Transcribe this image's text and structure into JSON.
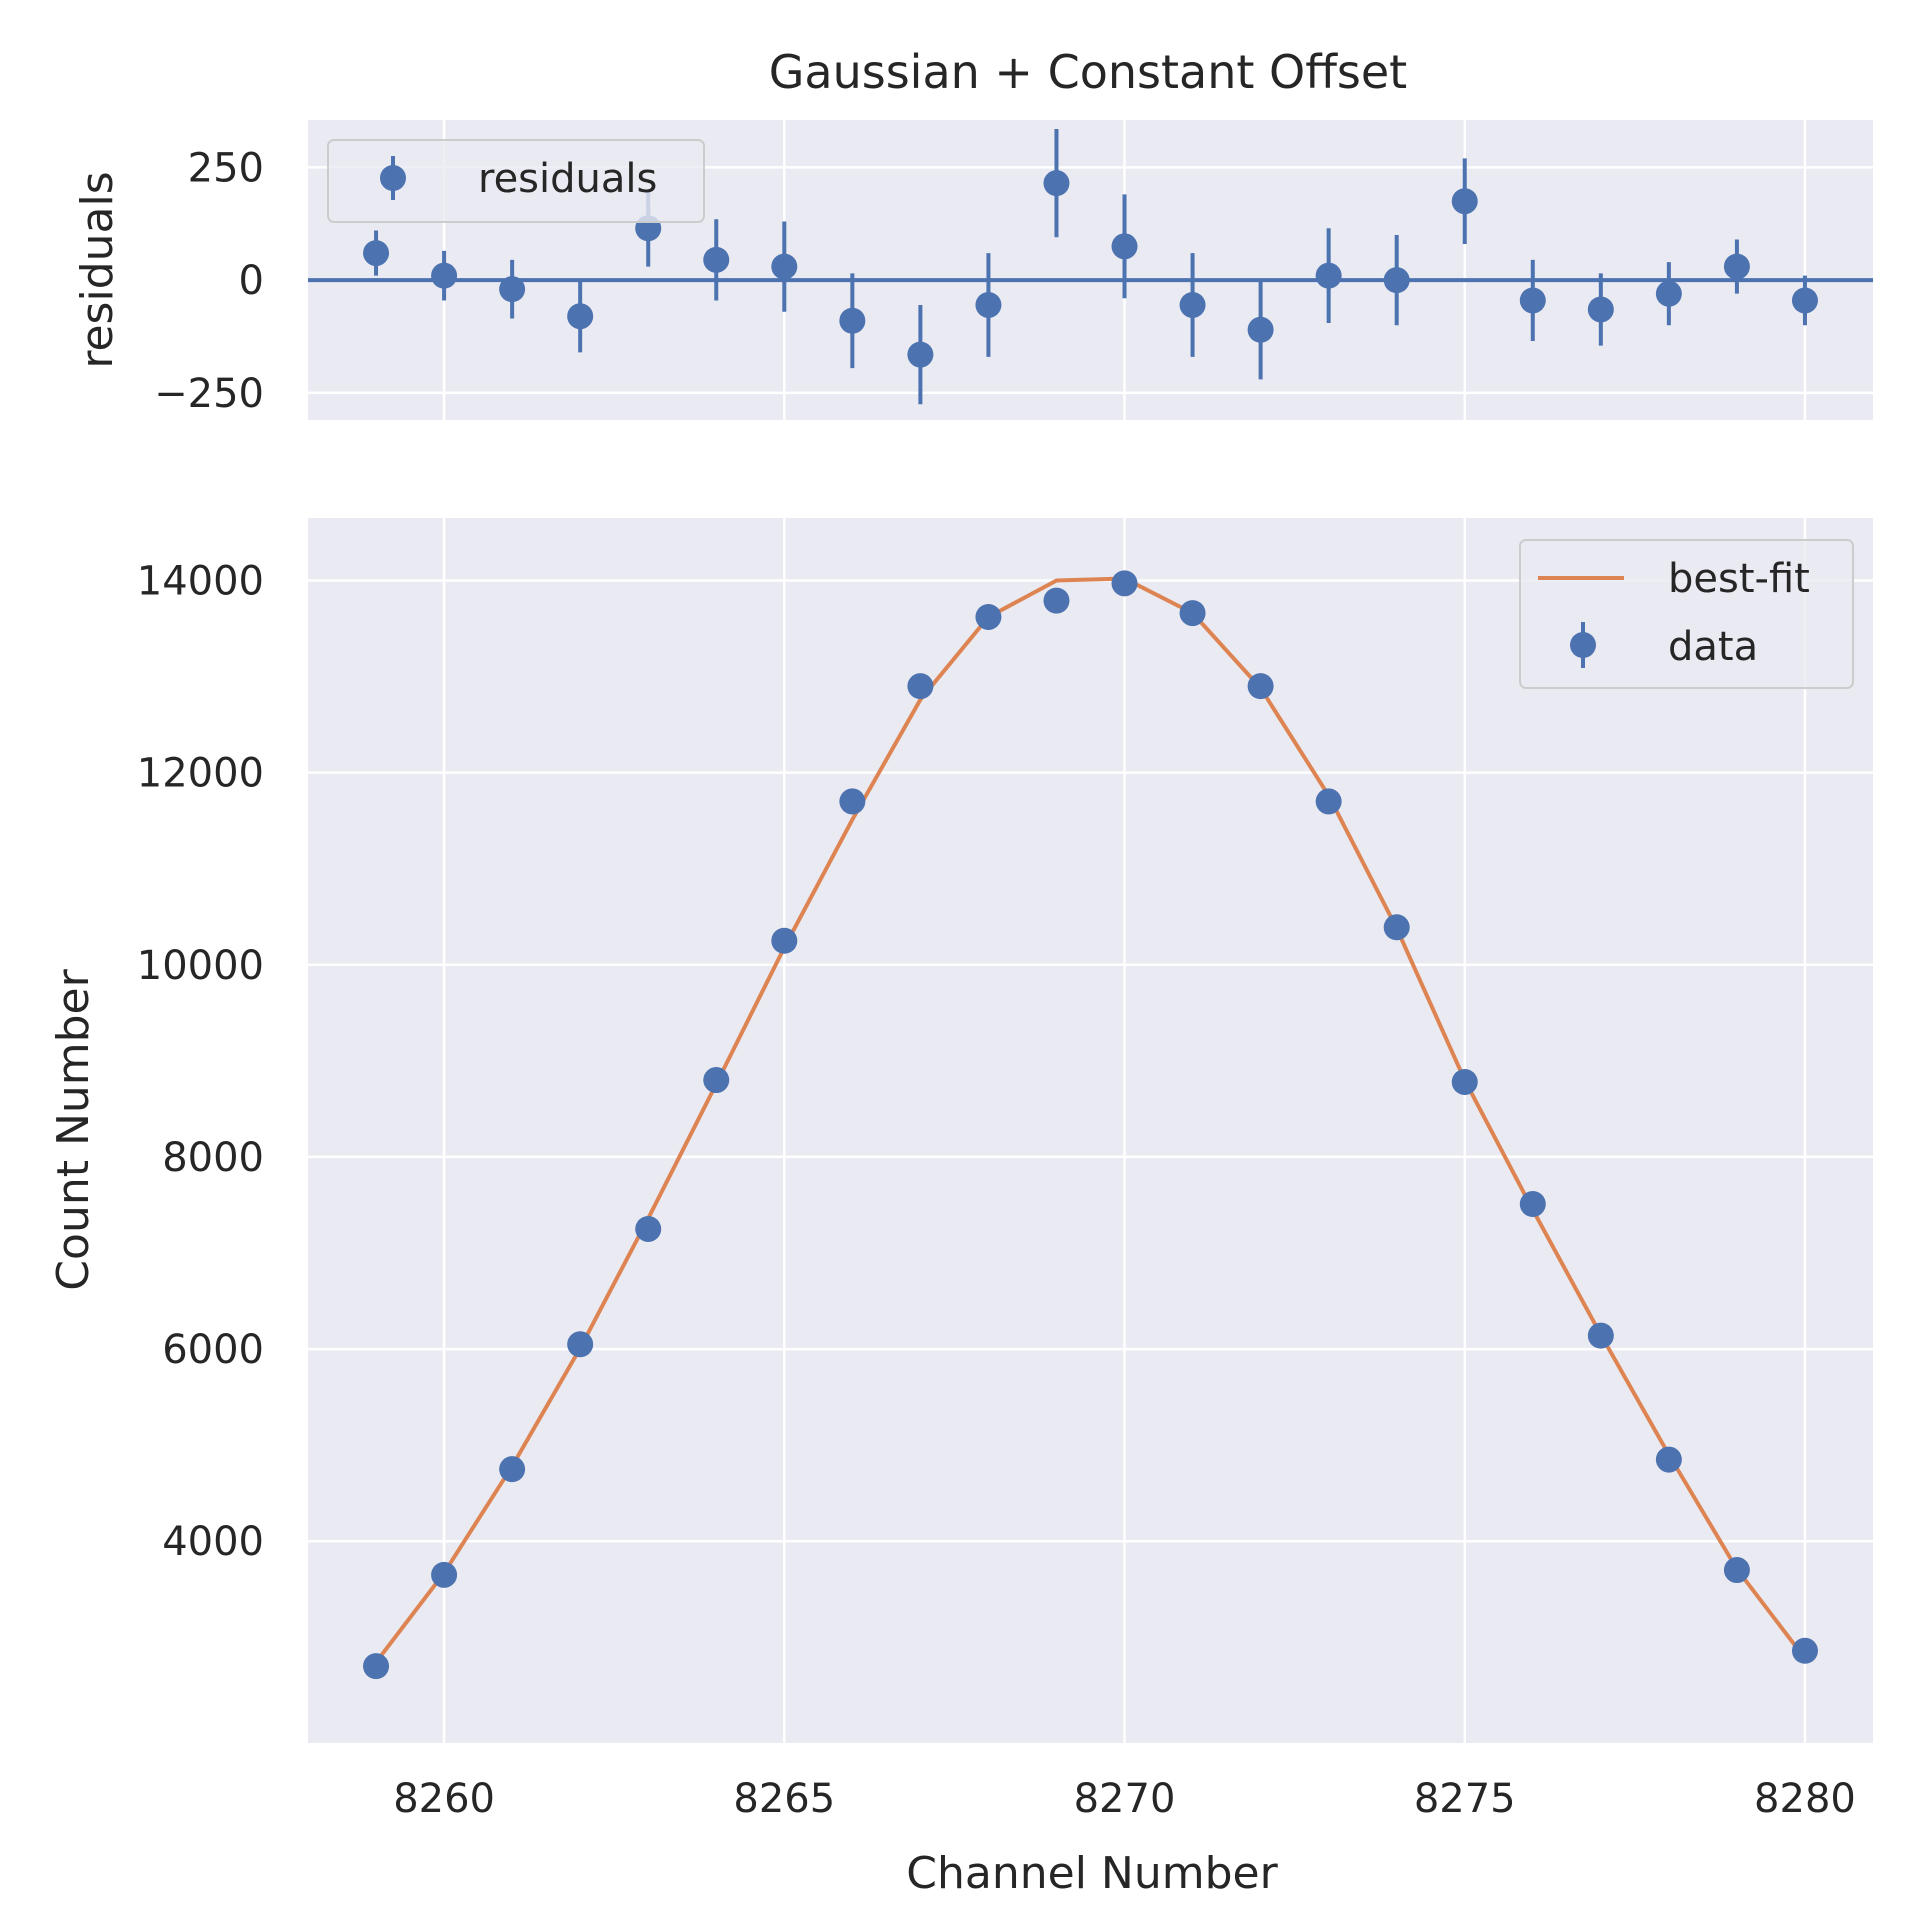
{
  "chart_data": [
    {
      "type": "scatter",
      "title": "Gaussian + Constant Offset",
      "xlabel": "",
      "ylabel": "residuals",
      "xlim": [
        8258,
        8281
      ],
      "ylim": [
        -310,
        355
      ],
      "yticks": [
        -250,
        0,
        250
      ],
      "ytick_labels": [
        "−250",
        "0",
        "250"
      ],
      "grid": true,
      "legend_placement": "upper left",
      "legend": [
        "residuals"
      ],
      "reference_line": 0,
      "series": [
        {
          "name": "residuals",
          "x": [
            8259,
            8260,
            8261,
            8262,
            8263,
            8264,
            8265,
            8266,
            8267,
            8268,
            8269,
            8270,
            8271,
            8272,
            8273,
            8274,
            8275,
            8276,
            8277,
            8278,
            8279,
            8280
          ],
          "y": [
            60,
            10,
            -20,
            -80,
            115,
            45,
            30,
            -90,
            -165,
            -55,
            215,
            75,
            -55,
            -110,
            10,
            0,
            175,
            -45,
            -65,
            -30,
            30,
            -45
          ],
          "yerr": [
            50,
            55,
            65,
            80,
            85,
            90,
            100,
            105,
            110,
            115,
            120,
            115,
            115,
            110,
            105,
            100,
            95,
            90,
            80,
            70,
            60,
            55
          ]
        }
      ]
    },
    {
      "type": "line",
      "title": "",
      "xlabel": "Channel Number",
      "ylabel": "Count Number",
      "xlim": [
        8258,
        8281
      ],
      "ylim": [
        1900,
        14650
      ],
      "xticks": [
        8260,
        8265,
        8270,
        8275,
        8280
      ],
      "yticks": [
        4000,
        6000,
        8000,
        10000,
        12000,
        14000
      ],
      "grid": true,
      "legend_placement": "upper right",
      "legend": [
        "best-fit",
        "data"
      ],
      "series": [
        {
          "name": "best-fit",
          "x": [
            8259,
            8260,
            8261,
            8262,
            8263,
            8264,
            8265,
            8266,
            8267,
            8268,
            8269,
            8270,
            8271,
            8272,
            8273,
            8274,
            8275,
            8276,
            8277,
            8278,
            8279,
            8280
          ],
          "y": [
            2740,
            3670,
            4780,
            6010,
            7360,
            8760,
            10180,
            11510,
            12760,
            13620,
            14000,
            14020,
            13660,
            12880,
            11760,
            10380,
            8800,
            7450,
            6150,
            4900,
            3710,
            2780
          ]
        },
        {
          "name": "data",
          "x": [
            8259,
            8260,
            8261,
            8262,
            8263,
            8264,
            8265,
            8266,
            8267,
            8268,
            8269,
            8270,
            8271,
            8272,
            8273,
            8274,
            8275,
            8276,
            8277,
            8278,
            8279,
            8280
          ],
          "y": [
            2700,
            3650,
            4750,
            6050,
            7250,
            8800,
            10250,
            11700,
            12900,
            13620,
            13790,
            13970,
            13660,
            12900,
            11700,
            10390,
            8780,
            7510,
            6140,
            4850,
            3700,
            2860
          ]
        }
      ]
    }
  ],
  "colors": {
    "data": "#4c72b0",
    "fit": "#dd8452",
    "plot_bg": "#eaeaf2",
    "grid": "#ffffff",
    "text": "#262626"
  }
}
